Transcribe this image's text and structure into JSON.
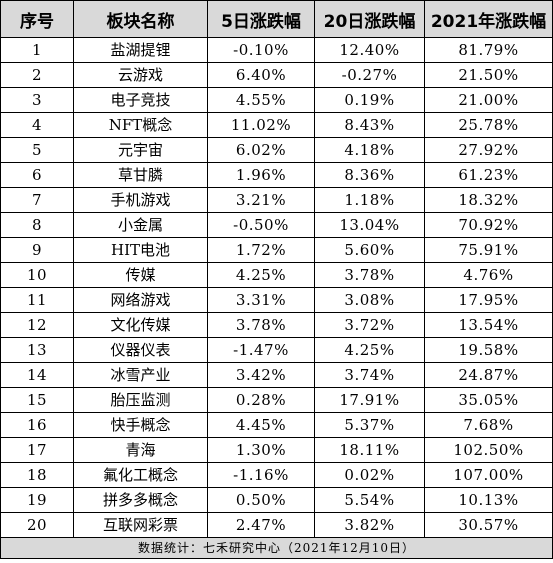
{
  "table": {
    "headers": [
      "序号",
      "板块名称",
      "5日涨跌幅",
      "20日涨跌幅",
      "2021年涨跌幅"
    ],
    "rows": [
      [
        "1",
        "盐湖提锂",
        "-0.10%",
        "12.40%",
        "81.79%"
      ],
      [
        "2",
        "云游戏",
        "6.40%",
        "-0.27%",
        "21.50%"
      ],
      [
        "3",
        "电子竞技",
        "4.55%",
        "0.19%",
        "21.00%"
      ],
      [
        "4",
        "NFT概念",
        "11.02%",
        "8.43%",
        "25.78%"
      ],
      [
        "5",
        "元宇宙",
        "6.02%",
        "4.18%",
        "27.92%"
      ],
      [
        "6",
        "草甘膦",
        "1.96%",
        "8.36%",
        "61.23%"
      ],
      [
        "7",
        "手机游戏",
        "3.21%",
        "1.18%",
        "18.32%"
      ],
      [
        "8",
        "小金属",
        "-0.50%",
        "13.04%",
        "70.92%"
      ],
      [
        "9",
        "HIT电池",
        "1.72%",
        "5.60%",
        "75.91%"
      ],
      [
        "10",
        "传媒",
        "4.25%",
        "3.78%",
        "4.76%"
      ],
      [
        "11",
        "网络游戏",
        "3.31%",
        "3.08%",
        "17.95%"
      ],
      [
        "12",
        "文化传媒",
        "3.78%",
        "3.72%",
        "13.54%"
      ],
      [
        "13",
        "仪器仪表",
        "-1.47%",
        "4.25%",
        "19.58%"
      ],
      [
        "14",
        "冰雪产业",
        "3.42%",
        "3.74%",
        "24.87%"
      ],
      [
        "15",
        "胎压监测",
        "0.28%",
        "17.91%",
        "35.05%"
      ],
      [
        "16",
        "快手概念",
        "4.45%",
        "5.37%",
        "7.68%"
      ],
      [
        "17",
        "青海",
        "1.30%",
        "18.11%",
        "102.50%"
      ],
      [
        "18",
        "氟化工概念",
        "-1.16%",
        "0.02%",
        "107.00%"
      ],
      [
        "19",
        "拼多多概念",
        "0.50%",
        "5.54%",
        "10.13%"
      ],
      [
        "20",
        "互联网彩票",
        "2.47%",
        "3.82%",
        "30.57%"
      ]
    ],
    "footer": "数据统计：七禾研究中心（2021年12月10日）"
  }
}
